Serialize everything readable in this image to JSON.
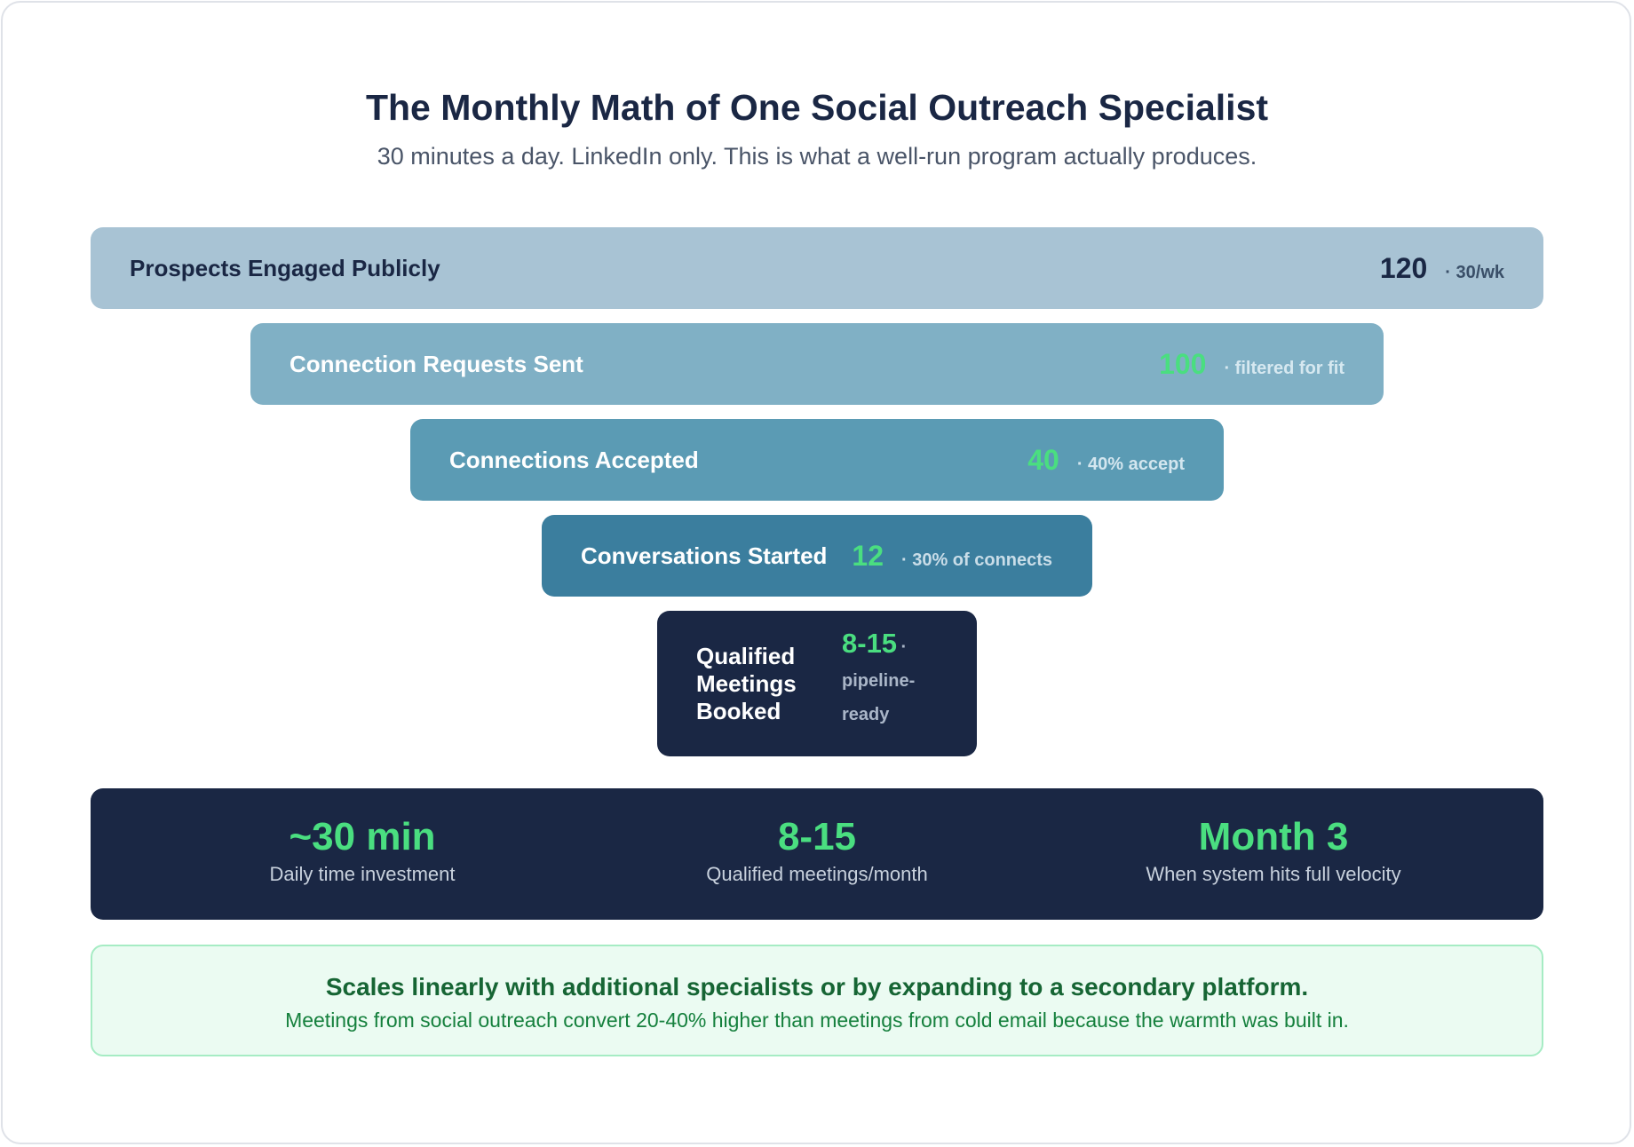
{
  "header": {
    "title": "The Monthly Math of One Social Outreach Specialist",
    "subtitle": "30 minutes a day. LinkedIn only. This is what a well-run program actually produces."
  },
  "funnel": [
    {
      "label": "Prospects Engaged Publicly",
      "value": "120",
      "note": "· 30/wk"
    },
    {
      "label": "Connection Requests Sent",
      "value": "100",
      "note": "· filtered for fit"
    },
    {
      "label": "Connections Accepted",
      "value": "40",
      "note": "· 40% accept"
    },
    {
      "label": "Conversations Started",
      "value": "12",
      "note": "· 30% of connects"
    },
    {
      "label": "Qualified Meetings Booked",
      "value": "8-15",
      "note": "· pipeline-ready"
    }
  ],
  "metrics": [
    {
      "value": "~30 min",
      "label": "Daily time investment"
    },
    {
      "value": "8-15",
      "label": "Qualified meetings/month"
    },
    {
      "value": "Month 3",
      "label": "When system hits full velocity"
    }
  ],
  "callout": {
    "headline": "Scales linearly with additional specialists or by expanding to a secondary platform.",
    "body": "Meetings from social outreach convert 20-40% higher than meetings from cold email because the warmth was built in."
  },
  "colors": {
    "navy": "#1a2744",
    "green_accent": "#4ade80",
    "stage_1": "#a8c3d4",
    "stage_2": "#80b0c5",
    "stage_3": "#5b9bb4",
    "stage_4": "#3b7e9e",
    "callout_bg": "#ebfbf2"
  }
}
